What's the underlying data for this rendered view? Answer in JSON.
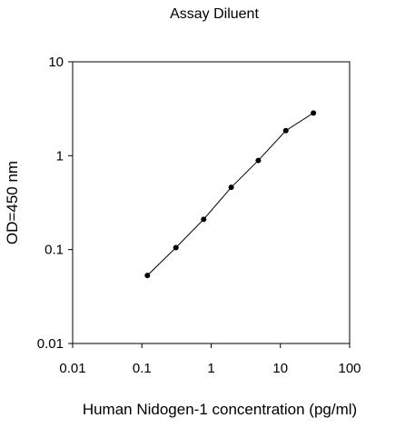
{
  "chart_data": {
    "type": "line",
    "title": "Assay Diluent",
    "xlabel": "Human Nidogen-1 concentration (pg/ml)",
    "ylabel": "OD=450 nm",
    "x_scale": "log",
    "y_scale": "log",
    "xlim": [
      0.01,
      100
    ],
    "ylim": [
      0.01,
      10
    ],
    "x_ticks": [
      0.01,
      0.1,
      1,
      10,
      100
    ],
    "x_tick_labels": [
      "0.01",
      "0.1",
      "1",
      "10",
      "100"
    ],
    "y_ticks": [
      0.01,
      0.1,
      1,
      10
    ],
    "y_tick_labels": [
      "0.01",
      "0.1",
      "1",
      "10"
    ],
    "grid": false,
    "legend": "none",
    "series": [
      {
        "color": "#000000",
        "marker": "circle",
        "points": [
          {
            "x": 0.12,
            "y": 0.053
          },
          {
            "x": 0.31,
            "y": 0.105
          },
          {
            "x": 0.78,
            "y": 0.21
          },
          {
            "x": 1.95,
            "y": 0.46
          },
          {
            "x": 4.8,
            "y": 0.89
          },
          {
            "x": 12,
            "y": 1.85
          },
          {
            "x": 30,
            "y": 2.85
          }
        ]
      }
    ]
  }
}
